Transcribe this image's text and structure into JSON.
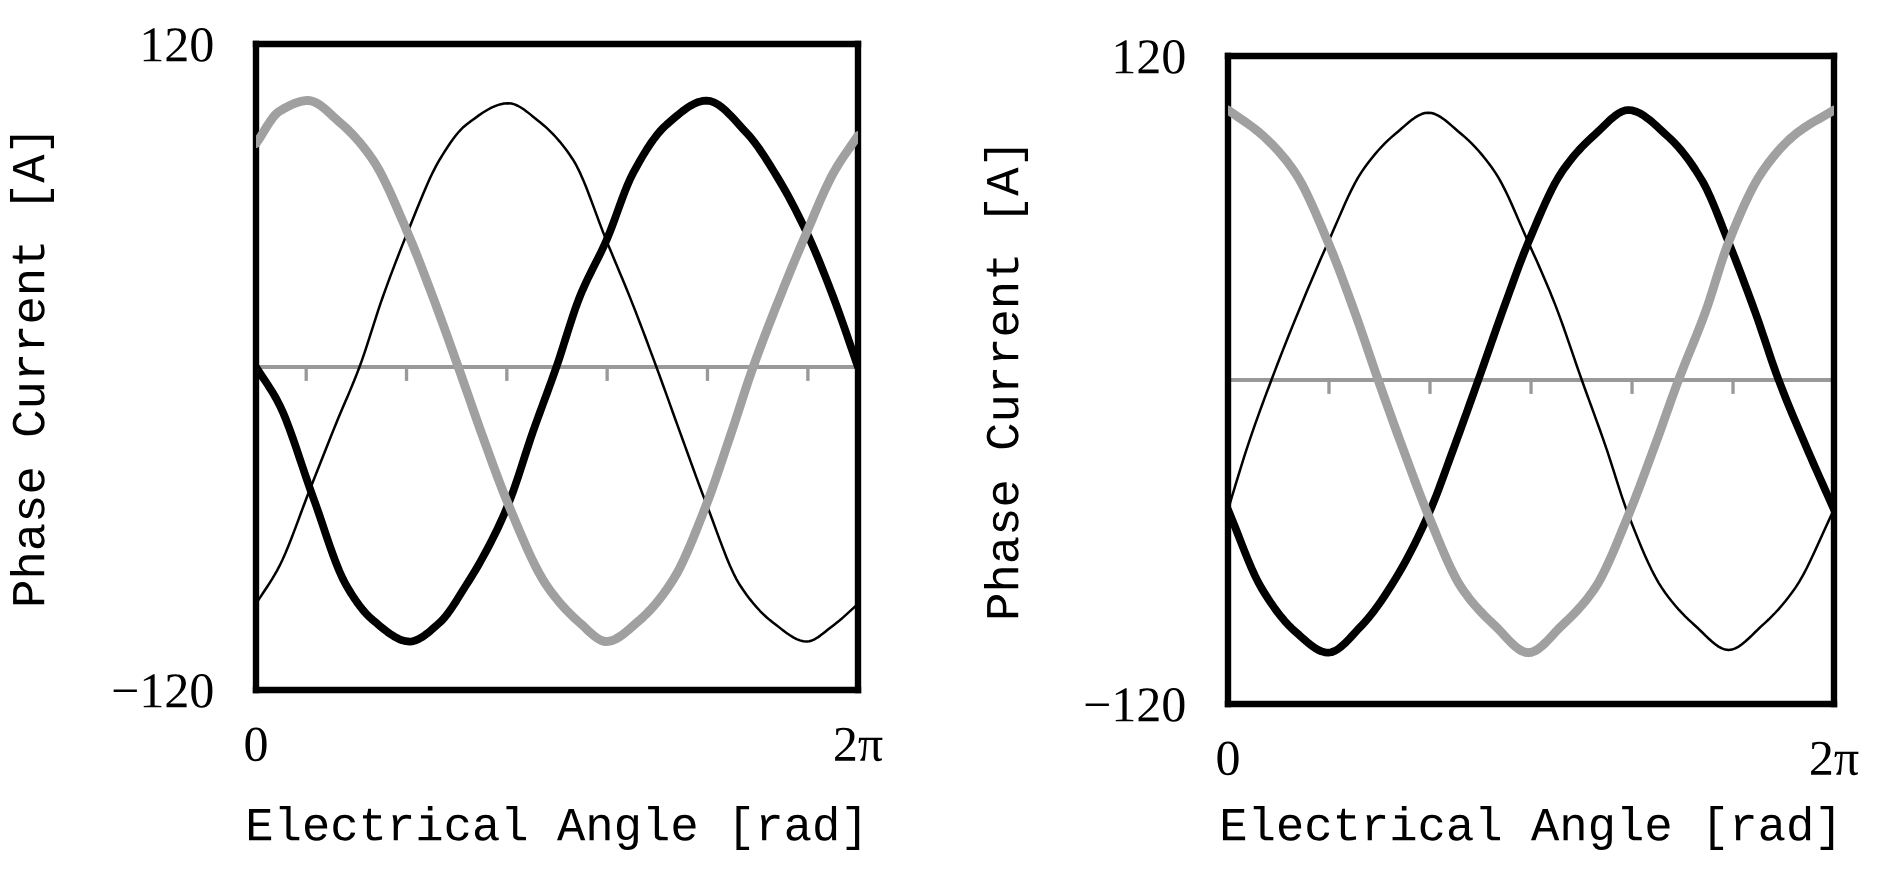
{
  "chart_data": [
    {
      "type": "line",
      "xlabel": "Electrical Angle [rad]",
      "ylabel": "Phase Current [A]",
      "xlim": [
        0,
        6.283
      ],
      "ylim": [
        -120,
        120
      ],
      "xticks": [
        {
          "value": 0,
          "label": "0"
        },
        {
          "value": 0.524,
          "label": null
        },
        {
          "value": 1.571,
          "label": null
        },
        {
          "value": 2.618,
          "label": null
        },
        {
          "value": 3.665,
          "label": null
        },
        {
          "value": 4.712,
          "label": null
        },
        {
          "value": 5.76,
          "label": null
        },
        {
          "value": 6.283,
          "label": "2π"
        }
      ],
      "yticks": [
        -120,
        120
      ],
      "ref_lines": [
        {
          "axis": "y",
          "value": 0,
          "color": "#999999"
        }
      ],
      "series": [
        {
          "color": "#000000",
          "x": [
            0,
            0.244,
            0.592,
            0.94,
            1.219,
            1.602,
            1.916,
            2.194,
            2.438,
            2.633,
            2.891,
            3.135,
            3.378,
            3.657,
            3.935,
            4.284,
            4.702,
            5.12,
            5.433,
            5.747,
            6.025,
            6.283
          ],
          "values": [
            0,
            -14,
            -48,
            -81,
            -94,
            -102,
            -95,
            -81,
            -66,
            -51,
            -24,
            0,
            26,
            47,
            72,
            90,
            99,
            87,
            71,
            50,
            26,
            0
          ]
        },
        {
          "color": "#000000",
          "x": [
            0,
            0.244,
            0.557,
            0.836,
            1.08,
            1.323,
            1.581,
            1.916,
            2.194,
            2.633,
            2.961,
            3.309,
            3.657,
            3.935,
            4.179,
            4.423,
            4.702,
            5.05,
            5.398,
            5.747,
            6.025,
            6.283
          ],
          "values": [
            -88,
            -74,
            -46,
            -21,
            0,
            26,
            50,
            77,
            90,
            98,
            91,
            77,
            47,
            23,
            0,
            -24,
            -51,
            -81,
            -95,
            -102,
            -96,
            -88
          ]
        },
        {
          "color": "#a0a0a0",
          "x": [
            0,
            0.244,
            0.543,
            0.871,
            1.219,
            1.581,
            1.846,
            2.111,
            2.368,
            2.633,
            3.03,
            3.378,
            3.657,
            4.005,
            4.354,
            4.702,
            4.946,
            5.189,
            5.468,
            5.747,
            6.025,
            6.283
          ],
          "values": [
            83,
            95,
            99,
            91,
            77,
            50,
            26,
            0,
            -26,
            -51,
            -81,
            -95,
            -102,
            -94,
            -79,
            -51,
            -26,
            0,
            26,
            50,
            72,
            86
          ]
        }
      ]
    },
    {
      "type": "line",
      "xlabel": "Electrical Angle [rad]",
      "ylabel": "Phase Current [A]",
      "xlim": [
        0,
        6.283
      ],
      "ylim": [
        -120,
        120
      ],
      "xticks": [
        {
          "value": 0,
          "label": "0"
        },
        {
          "value": 1.047,
          "label": null
        },
        {
          "value": 2.094,
          "label": null
        },
        {
          "value": 3.142,
          "label": null
        },
        {
          "value": 4.189,
          "label": null
        },
        {
          "value": 5.236,
          "label": null
        },
        {
          "value": 6.283,
          "label": "2π"
        }
      ],
      "yticks": [
        -120,
        120
      ],
      "ref_lines": [
        {
          "axis": "y",
          "value": 0,
          "color": "#999999"
        }
      ],
      "series": [
        {
          "color": "#000000",
          "x": [
            0,
            0.346,
            0.692,
            1.038,
            1.384,
            1.73,
            2.076,
            2.353,
            2.595,
            2.872,
            3.114,
            3.46,
            3.806,
            4.152,
            4.567,
            4.913,
            5.19,
            5.467,
            5.709,
            5.986,
            6.283
          ],
          "values": [
            -48,
            -77,
            -93,
            -101,
            -91,
            -74,
            -50,
            -24,
            0,
            28,
            51,
            77,
            91,
            100,
            90,
            74,
            51,
            25,
            0,
            -24,
            -48
          ]
        },
        {
          "color": "#000000",
          "x": [
            0,
            0.208,
            0.45,
            0.761,
            1.038,
            1.384,
            1.73,
            2.076,
            2.422,
            2.768,
            3.114,
            3.391,
            3.668,
            3.91,
            4.152,
            4.498,
            4.844,
            5.19,
            5.536,
            5.882,
            6.283
          ],
          "values": [
            -48,
            -24,
            0,
            28,
            51,
            77,
            91,
            99,
            91,
            77,
            51,
            28,
            0,
            -24,
            -50,
            -77,
            -91,
            -100,
            -91,
            -77,
            -48
          ]
        },
        {
          "color": "#a0a0a0",
          "x": [
            0,
            0.346,
            0.692,
            1.038,
            1.315,
            1.557,
            1.799,
            2.076,
            2.422,
            2.768,
            3.114,
            3.46,
            3.806,
            4.152,
            4.429,
            4.671,
            4.948,
            5.19,
            5.536,
            5.882,
            6.283
          ],
          "values": [
            100,
            91,
            77,
            51,
            25,
            0,
            -24,
            -50,
            -77,
            -91,
            -101,
            -91,
            -77,
            -50,
            -24,
            0,
            25,
            51,
            77,
            91,
            100
          ]
        }
      ]
    }
  ]
}
